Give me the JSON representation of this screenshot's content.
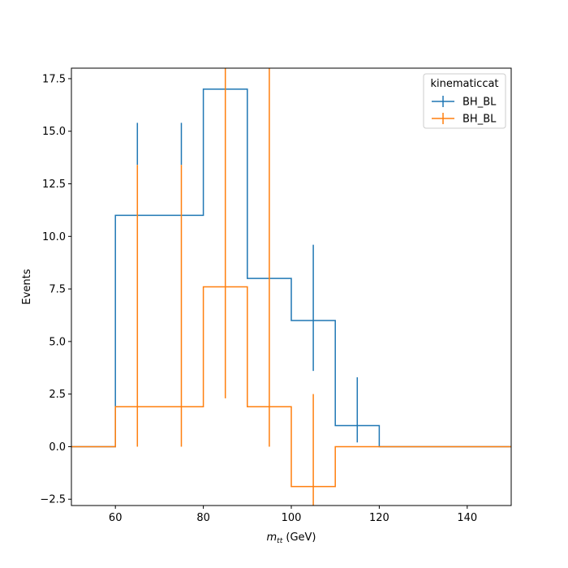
{
  "chart_data": {
    "type": "histogram-step",
    "xlabel": {
      "main": "m",
      "sub": "tt",
      "unit": " (GeV)"
    },
    "ylabel": "Events",
    "xlim": [
      50,
      150
    ],
    "ylim": [
      -2.8,
      18.0
    ],
    "xticks": [
      60,
      80,
      100,
      120,
      140
    ],
    "yticks": [
      -2.5,
      0.0,
      2.5,
      5.0,
      7.5,
      10.0,
      12.5,
      15.0,
      17.5
    ],
    "ytick_labels": [
      "−2.5",
      "0.0",
      "2.5",
      "5.0",
      "7.5",
      "10.0",
      "12.5",
      "15.0",
      "17.5"
    ],
    "grid": false,
    "legend": {
      "title": "kinematiccat",
      "position": "top-right"
    },
    "series": [
      {
        "name": "BH_BL",
        "color": "#1f77b4",
        "bin_edges": [
          50,
          60,
          70,
          80,
          90,
          100,
          110,
          120,
          130,
          140,
          150
        ],
        "values": [
          0,
          11,
          11,
          17,
          8,
          6,
          1,
          0,
          0,
          0
        ],
        "error_bars": [
          {
            "x": 65,
            "lo": 13.4,
            "hi": 15.4
          },
          {
            "x": 75,
            "lo": 13.4,
            "hi": 15.4
          },
          {
            "x": 105,
            "lo": 3.6,
            "hi": 9.6
          },
          {
            "x": 115,
            "lo": 0.2,
            "hi": 3.3
          }
        ]
      },
      {
        "name": "BH_BL",
        "color": "#ff7f0e",
        "bin_edges": [
          50,
          60,
          70,
          80,
          90,
          100,
          110,
          120,
          130,
          140,
          150
        ],
        "values": [
          0,
          1.9,
          1.9,
          7.6,
          1.9,
          -1.9,
          0,
          0,
          0,
          0
        ],
        "error_bars": [
          {
            "x": 65,
            "lo": 0.0,
            "hi": 13.4
          },
          {
            "x": 75,
            "lo": 0.0,
            "hi": 13.4
          },
          {
            "x": 85,
            "lo": 2.3,
            "hi": 18.0
          },
          {
            "x": 95,
            "lo": 0.0,
            "hi": 18.0
          },
          {
            "x": 105,
            "lo": -2.8,
            "hi": 2.5
          }
        ]
      }
    ]
  }
}
